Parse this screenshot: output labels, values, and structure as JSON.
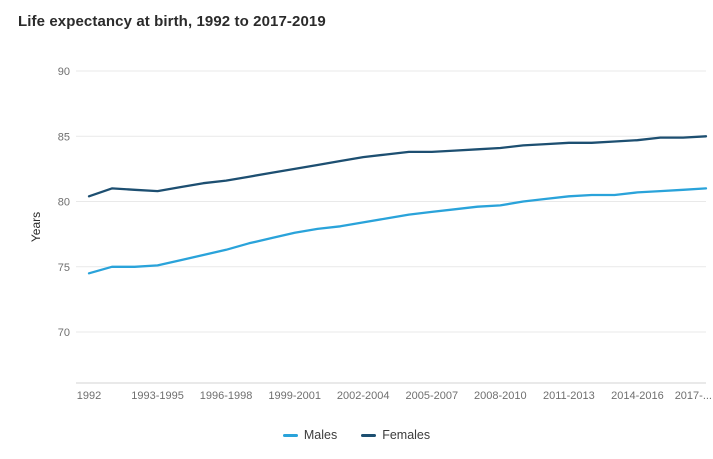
{
  "chart_data": {
    "type": "line",
    "title": "Life expectancy at birth, 1992 to 2017-2019",
    "ylabel": "Years",
    "x_count": 28,
    "x_tick_labels": [
      "1992",
      "1993-1995",
      "1996-1998",
      "1999-2001",
      "2002-2004",
      "2005-2007",
      "2008-2010",
      "2011-2013",
      "2014-2016",
      "2017-..."
    ],
    "x_tick_indices": [
      0,
      3,
      6,
      9,
      12,
      15,
      18,
      21,
      24,
      27
    ],
    "y_ticks": [
      70,
      75,
      80,
      85,
      90
    ],
    "ylim": [
      66,
      90
    ],
    "grid": "horizontal",
    "legend_position": "bottom",
    "series": [
      {
        "name": "Males",
        "color": "#2aa3da",
        "values": [
          74.5,
          75.0,
          75.0,
          75.1,
          75.5,
          75.9,
          76.3,
          76.8,
          77.2,
          77.6,
          77.9,
          78.1,
          78.4,
          78.7,
          79.0,
          79.2,
          79.4,
          79.6,
          79.7,
          80.0,
          80.2,
          80.4,
          80.5,
          80.5,
          80.7,
          80.8,
          80.9,
          81.0
        ]
      },
      {
        "name": "Females",
        "color": "#1d4f71",
        "values": [
          80.4,
          81.0,
          80.9,
          80.8,
          81.1,
          81.4,
          81.6,
          81.9,
          82.2,
          82.5,
          82.8,
          83.1,
          83.4,
          83.6,
          83.8,
          83.8,
          83.9,
          84.0,
          84.1,
          84.3,
          84.4,
          84.5,
          84.5,
          84.6,
          84.7,
          84.9,
          84.9,
          85.0
        ]
      }
    ]
  }
}
